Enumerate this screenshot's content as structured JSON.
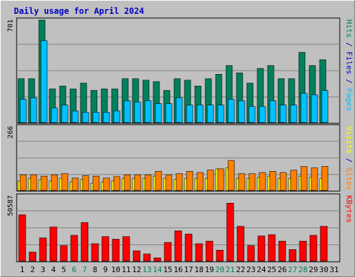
{
  "title": "Daily usage for April 2024",
  "colors": {
    "hits": "#00805c",
    "files": "#00c0ff",
    "pages": "#00c0ff",
    "visits": "#ffff00",
    "sites": "#ff8000",
    "kbytes": "#ff0000",
    "weekend_label": "#00805c",
    "weekday_label": "#000000",
    "panel_bg": "#c0c0c0",
    "title": "#0000c0"
  },
  "right_labels": {
    "top": [
      {
        "text": "Hits",
        "color": "#00805c"
      },
      {
        "text": " / ",
        "color": "#0000c0"
      },
      {
        "text": "Files",
        "color": "#0000c0"
      },
      {
        "text": " / ",
        "color": "#0000c0"
      },
      {
        "text": "Pages",
        "color": "#00c0ff"
      }
    ],
    "middle": [
      {
        "text": "Visits",
        "color": "#ffff00"
      },
      {
        "text": " / ",
        "color": "#0000c0"
      },
      {
        "text": "Sites",
        "color": "#ff8000"
      }
    ],
    "bottom": [
      {
        "text": "KBytes",
        "color": "#ff0000"
      }
    ]
  },
  "chart_data": [
    {
      "type": "bar",
      "panel": "hits_files",
      "ymax_label": "701",
      "ylim": [
        0,
        701
      ],
      "categories": [
        "1",
        "2",
        "3",
        "4",
        "5",
        "6",
        "7",
        "8",
        "9",
        "10",
        "11",
        "12",
        "13",
        "14",
        "15",
        "16",
        "17",
        "18",
        "19",
        "20",
        "21",
        "22",
        "23",
        "24",
        "25",
        "26",
        "27",
        "28",
        "29",
        "30",
        "31"
      ],
      "weekend_days": [
        "6",
        "7",
        "13",
        "14",
        "20",
        "21",
        "27",
        "28"
      ],
      "series": [
        {
          "name": "Hits",
          "color": "#00805c",
          "values": [
            300,
            300,
            701,
            230,
            250,
            230,
            270,
            220,
            230,
            230,
            300,
            300,
            290,
            280,
            220,
            300,
            290,
            250,
            300,
            330,
            390,
            340,
            270,
            370,
            390,
            300,
            300,
            480,
            390,
            430,
            0
          ]
        },
        {
          "name": "Files",
          "color": "#00c0ff",
          "values": [
            160,
            170,
            560,
            100,
            120,
            80,
            70,
            70,
            70,
            80,
            150,
            140,
            150,
            130,
            130,
            170,
            120,
            120,
            120,
            120,
            160,
            150,
            110,
            110,
            150,
            120,
            120,
            200,
            190,
            220,
            0
          ]
        }
      ]
    },
    {
      "type": "bar",
      "panel": "visits_sites",
      "ymax_label": "266",
      "ylim": [
        0,
        266
      ],
      "categories": [
        "1",
        "2",
        "3",
        "4",
        "5",
        "6",
        "7",
        "8",
        "9",
        "10",
        "11",
        "12",
        "13",
        "14",
        "15",
        "16",
        "17",
        "18",
        "19",
        "20",
        "21",
        "22",
        "23",
        "24",
        "25",
        "26",
        "27",
        "28",
        "29",
        "30",
        "31"
      ],
      "series": [
        {
          "name": "Visits",
          "color": "#ffff00",
          "values": [
            40,
            50,
            45,
            40,
            50,
            35,
            45,
            30,
            35,
            40,
            50,
            50,
            50,
            60,
            50,
            45,
            50,
            50,
            50,
            90,
            95,
            50,
            50,
            55,
            60,
            50,
            50,
            60,
            55,
            50,
            0
          ]
        },
        {
          "name": "Sites",
          "color": "#ff8000",
          "values": [
            65,
            65,
            60,
            65,
            70,
            52,
            62,
            60,
            52,
            58,
            65,
            65,
            65,
            80,
            65,
            70,
            80,
            75,
            85,
            90,
            125,
            70,
            70,
            75,
            80,
            75,
            85,
            100,
            95,
            100,
            0
          ]
        }
      ]
    },
    {
      "type": "bar",
      "panel": "kbytes",
      "ymax_label": "50587",
      "ylim": [
        0,
        50587
      ],
      "categories": [
        "1",
        "2",
        "3",
        "4",
        "5",
        "6",
        "7",
        "8",
        "9",
        "10",
        "11",
        "12",
        "13",
        "14",
        "15",
        "16",
        "17",
        "18",
        "19",
        "20",
        "21",
        "22",
        "23",
        "24",
        "25",
        "26",
        "27",
        "28",
        "29",
        "30",
        "31"
      ],
      "series": [
        {
          "name": "KBytes",
          "color": "#ff0000",
          "values": [
            36000,
            7000,
            18000,
            26500,
            12000,
            20000,
            30000,
            13500,
            19000,
            17000,
            19000,
            8000,
            5500,
            2500,
            14500,
            23500,
            21000,
            13500,
            15500,
            8500,
            45000,
            27000,
            12000,
            19500,
            20500,
            15500,
            9000,
            15500,
            20000,
            27000,
            0
          ]
        }
      ]
    }
  ]
}
